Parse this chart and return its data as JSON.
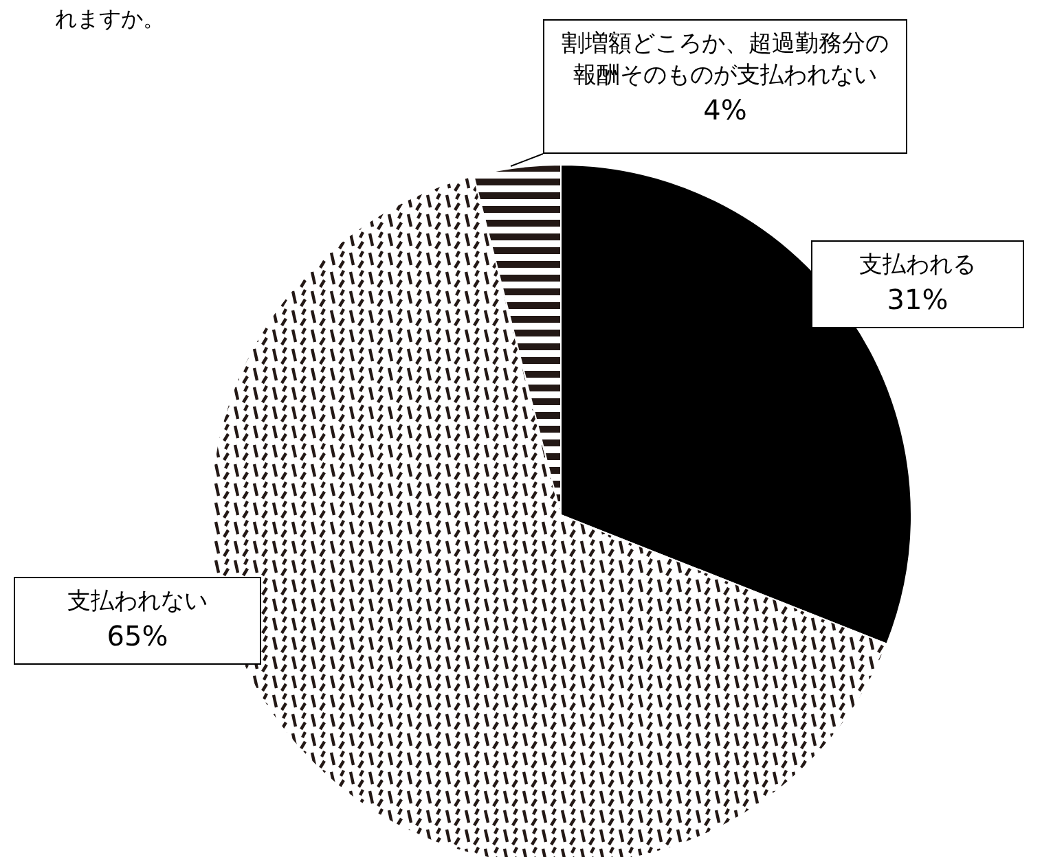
{
  "chart_data": {
    "type": "pie",
    "title": "れますか。",
    "categories": [
      "支払われる",
      "支払われない",
      "割増額どころか、超過勤務分の報酬そのものが支払われない"
    ],
    "values": [
      31,
      65,
      4
    ],
    "colors": [
      "#000000",
      "#ffffff",
      "#ffffff"
    ],
    "value_labels": [
      "31%",
      "65%",
      "4%"
    ]
  }
}
